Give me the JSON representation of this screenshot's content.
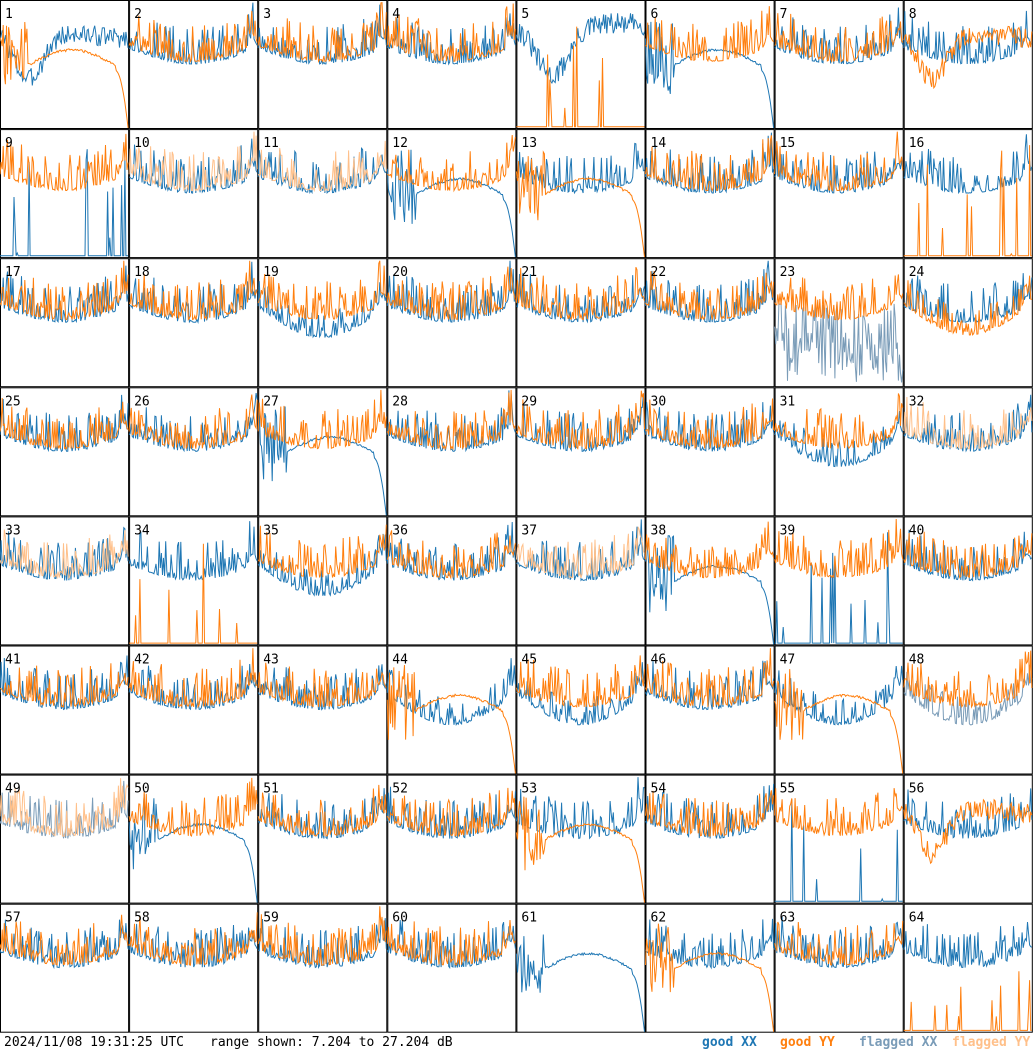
{
  "chart_data": {
    "type": "line",
    "layout": "small-multiples 8x8",
    "panels": [
      "1",
      "2",
      "3",
      "4",
      "5",
      "6",
      "7",
      "8",
      "9",
      "10",
      "11",
      "12",
      "13",
      "14",
      "15",
      "16",
      "17",
      "18",
      "19",
      "20",
      "21",
      "22",
      "23",
      "24",
      "25",
      "26",
      "27",
      "28",
      "29",
      "30",
      "31",
      "32",
      "33",
      "34",
      "35",
      "36",
      "37",
      "38",
      "39",
      "40",
      "41",
      "42",
      "43",
      "44",
      "45",
      "46",
      "47",
      "48",
      "49",
      "50",
      "51",
      "52",
      "53",
      "54",
      "55",
      "56",
      "57",
      "58",
      "59",
      "60",
      "61",
      "62",
      "63",
      "64"
    ],
    "y_range_db": [
      7.204,
      27.204
    ],
    "series": [
      {
        "name": "good XX",
        "color": "#1f77b4"
      },
      {
        "name": "good YY",
        "color": "#ff7f0e"
      },
      {
        "name": "flagged XX",
        "color": "#7a9cb8"
      },
      {
        "name": "flagged YY",
        "color": "#ffc08a"
      }
    ],
    "flagged_xx_panels": [
      "23",
      "48",
      "49"
    ],
    "flagged_yy_panels": [
      "10",
      "11",
      "32",
      "33",
      "37",
      "49"
    ],
    "xx_shape": {
      "1": "sag",
      "5": "deep",
      "6": "dropoff",
      "9": "spikes",
      "12": "dropoff",
      "16": "normal",
      "19": "low",
      "23": "noisy-low",
      "27": "dropoff",
      "31": "low",
      "34": "normal",
      "35": "low",
      "38": "dropoff",
      "39": "spikes",
      "44": "low",
      "45": "low",
      "47": "low",
      "48": "low",
      "50": "dropoff",
      "53": "normal",
      "55": "spikes",
      "61": "dropoff",
      "62": "normal",
      "64": "normal"
    },
    "yy_shape": {
      "1": "dropoff",
      "5": "spikes",
      "8": "sag",
      "13": "dropoff",
      "16": "spikes",
      "24": "low",
      "34": "spikes",
      "44": "dropoff",
      "47": "dropoff",
      "53": "dropoff",
      "56": "sag",
      "61": "hidden",
      "62": "dropoff",
      "64": "spikes"
    }
  },
  "footer": {
    "timestamp": "2024/11/08 19:31:25 UTC",
    "range": "range shown: 7.204 to 27.204 dB",
    "legend": {
      "good_xx": "good XX",
      "good_yy": "good YY",
      "flagged_xx": "flagged XX",
      "flagged_yy": "flagged YY"
    }
  }
}
